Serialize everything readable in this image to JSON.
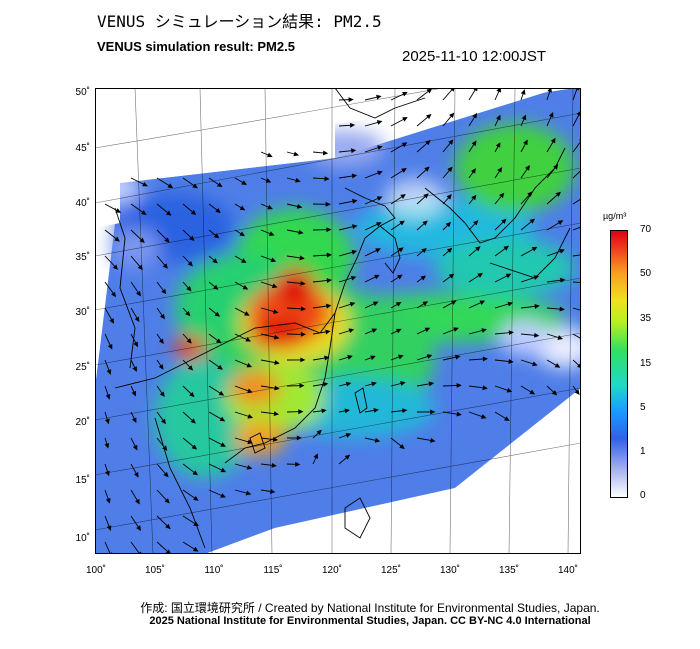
{
  "header": {
    "title_jp": "VENUS シミュレーション結果: PM2.5",
    "title_en": "VENUS simulation result: PM2.5",
    "timestamp": "2025-11-10 12:00JST"
  },
  "axes": {
    "lat_labels": [
      "50˚",
      "45˚",
      "40˚",
      "35˚",
      "30˚",
      "25˚",
      "20˚",
      "15˚",
      "10˚"
    ],
    "lon_labels": [
      "100˚",
      "105˚",
      "110˚",
      "115˚",
      "120˚",
      "125˚",
      "130˚",
      "135˚",
      "140˚"
    ]
  },
  "colorbar": {
    "unit": "µg/m³",
    "labels": [
      "70",
      "50",
      "35",
      "15",
      "5",
      "1",
      "0"
    ]
  },
  "footer": {
    "credit": "作成: 国立環境研究所 / Created by National Institute for Environmental Studies, Japan.",
    "copyright": "2025 National Institute for Environmental Studies, Japan. CC BY-NC 4.0 International"
  },
  "colors": {
    "high": "#e00010",
    "mid": "#30e060",
    "low": "#3060e8",
    "clean": "#ffffff"
  }
}
